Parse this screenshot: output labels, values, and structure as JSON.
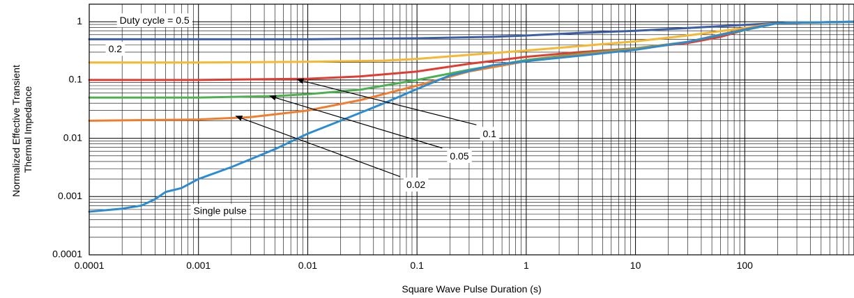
{
  "chart_data": {
    "type": "line",
    "title": "",
    "xlabel": "Square Wave Pulse Duration (s)",
    "ylabel_lines": [
      "Normalized Effective Transient",
      "Thermal Impedance"
    ],
    "x_scale": "log",
    "y_scale": "log",
    "xlim": [
      0.0001,
      1000
    ],
    "ylim": [
      0.0001,
      2
    ],
    "grid": true,
    "x_ticks": [
      {
        "value": 0.0001,
        "label": "0.0001"
      },
      {
        "value": 0.001,
        "label": "0.001"
      },
      {
        "value": 0.01,
        "label": "0.01"
      },
      {
        "value": 0.1,
        "label": "0.1"
      },
      {
        "value": 1,
        "label": "1"
      },
      {
        "value": 10,
        "label": "10"
      },
      {
        "value": 100,
        "label": "100"
      }
    ],
    "y_ticks": [
      {
        "value": 0.0001,
        "label": "0.0001"
      },
      {
        "value": 0.001,
        "label": "0.001"
      },
      {
        "value": 0.01,
        "label": "0.01"
      },
      {
        "value": 0.1,
        "label": "0.1"
      },
      {
        "value": 1,
        "label": "1"
      }
    ],
    "series": [
      {
        "name": "Duty cycle = 0.5",
        "color": "#3a5fa8",
        "x": [
          0.0001,
          0.001,
          0.01,
          0.1,
          0.5,
          1,
          3,
          10,
          30,
          100,
          200,
          1000
        ],
        "y": [
          0.5,
          0.5,
          0.5,
          0.52,
          0.55,
          0.58,
          0.64,
          0.7,
          0.78,
          0.88,
          0.95,
          1.0
        ]
      },
      {
        "name": "0.2",
        "color": "#f7b731",
        "x": [
          0.0001,
          0.001,
          0.01,
          0.05,
          0.1,
          0.3,
          1,
          3,
          10,
          30,
          100,
          200,
          1000
        ],
        "y": [
          0.2,
          0.2,
          0.205,
          0.215,
          0.23,
          0.27,
          0.32,
          0.38,
          0.46,
          0.58,
          0.78,
          0.95,
          1.0
        ]
      },
      {
        "name": "0.1",
        "color": "#e03c31",
        "x": [
          0.0001,
          0.001,
          0.01,
          0.03,
          0.1,
          0.3,
          1,
          3,
          10,
          30,
          60,
          100,
          200,
          1000
        ],
        "y": [
          0.1,
          0.1,
          0.105,
          0.115,
          0.14,
          0.19,
          0.25,
          0.3,
          0.35,
          0.43,
          0.55,
          0.72,
          0.95,
          1.0
        ]
      },
      {
        "name": "0.05",
        "color": "#4caf50",
        "x": [
          0.0001,
          0.001,
          0.005,
          0.01,
          0.03,
          0.1,
          0.3,
          1,
          3,
          10,
          30,
          100,
          200,
          1000
        ],
        "y": [
          0.05,
          0.05,
          0.053,
          0.057,
          0.068,
          0.1,
          0.15,
          0.22,
          0.28,
          0.35,
          0.45,
          0.72,
          0.95,
          1.0
        ]
      },
      {
        "name": "0.02",
        "color": "#ef7d2d",
        "x": [
          0.0001,
          0.001,
          0.003,
          0.01,
          0.03,
          0.1,
          0.3,
          1,
          3,
          10,
          30,
          100,
          200,
          1000
        ],
        "y": [
          0.02,
          0.021,
          0.023,
          0.03,
          0.045,
          0.08,
          0.14,
          0.21,
          0.27,
          0.34,
          0.45,
          0.75,
          0.95,
          1.0
        ]
      },
      {
        "name": "Single pulse",
        "color": "#2b8cd1",
        "x": [
          0.0001,
          0.0002,
          0.0003,
          0.0004,
          0.0005,
          0.0007,
          0.001,
          0.002,
          0.005,
          0.01,
          0.02,
          0.05,
          0.1,
          0.2,
          0.5,
          1,
          3,
          10,
          30,
          100,
          200,
          1000
        ],
        "y": [
          0.00055,
          0.00062,
          0.0007,
          0.0009,
          0.0012,
          0.0014,
          0.002,
          0.0032,
          0.0065,
          0.012,
          0.02,
          0.04,
          0.07,
          0.12,
          0.18,
          0.21,
          0.26,
          0.33,
          0.45,
          0.73,
          0.95,
          1.0
        ]
      }
    ],
    "annotations": [
      {
        "name": "Duty cycle = 0.5",
        "label": "Duty cycle = 0.5",
        "text_at": [
          0.00019,
          1.02
        ]
      },
      {
        "name": "0.2",
        "label": "0.2",
        "text_at": [
          0.00015,
          0.33
        ]
      },
      {
        "name": "0.1",
        "label": "0.1",
        "text_at": [
          0.4,
          0.0115
        ],
        "arrow_from": [
          0.35,
          0.017
        ],
        "arrow_to": [
          0.008,
          0.102
        ]
      },
      {
        "name": "0.05",
        "label": "0.05",
        "text_at": [
          0.2,
          0.0048
        ],
        "arrow_from": [
          0.17,
          0.0068
        ],
        "arrow_to": [
          0.0045,
          0.053
        ]
      },
      {
        "name": "0.02",
        "label": "0.02",
        "text_at": [
          0.08,
          0.00155
        ],
        "arrow_from": [
          0.07,
          0.0022
        ],
        "arrow_to": [
          0.0022,
          0.024
        ]
      },
      {
        "name": "Single pulse",
        "label": "Single pulse",
        "text_at": [
          0.0009,
          0.00055
        ]
      }
    ]
  }
}
